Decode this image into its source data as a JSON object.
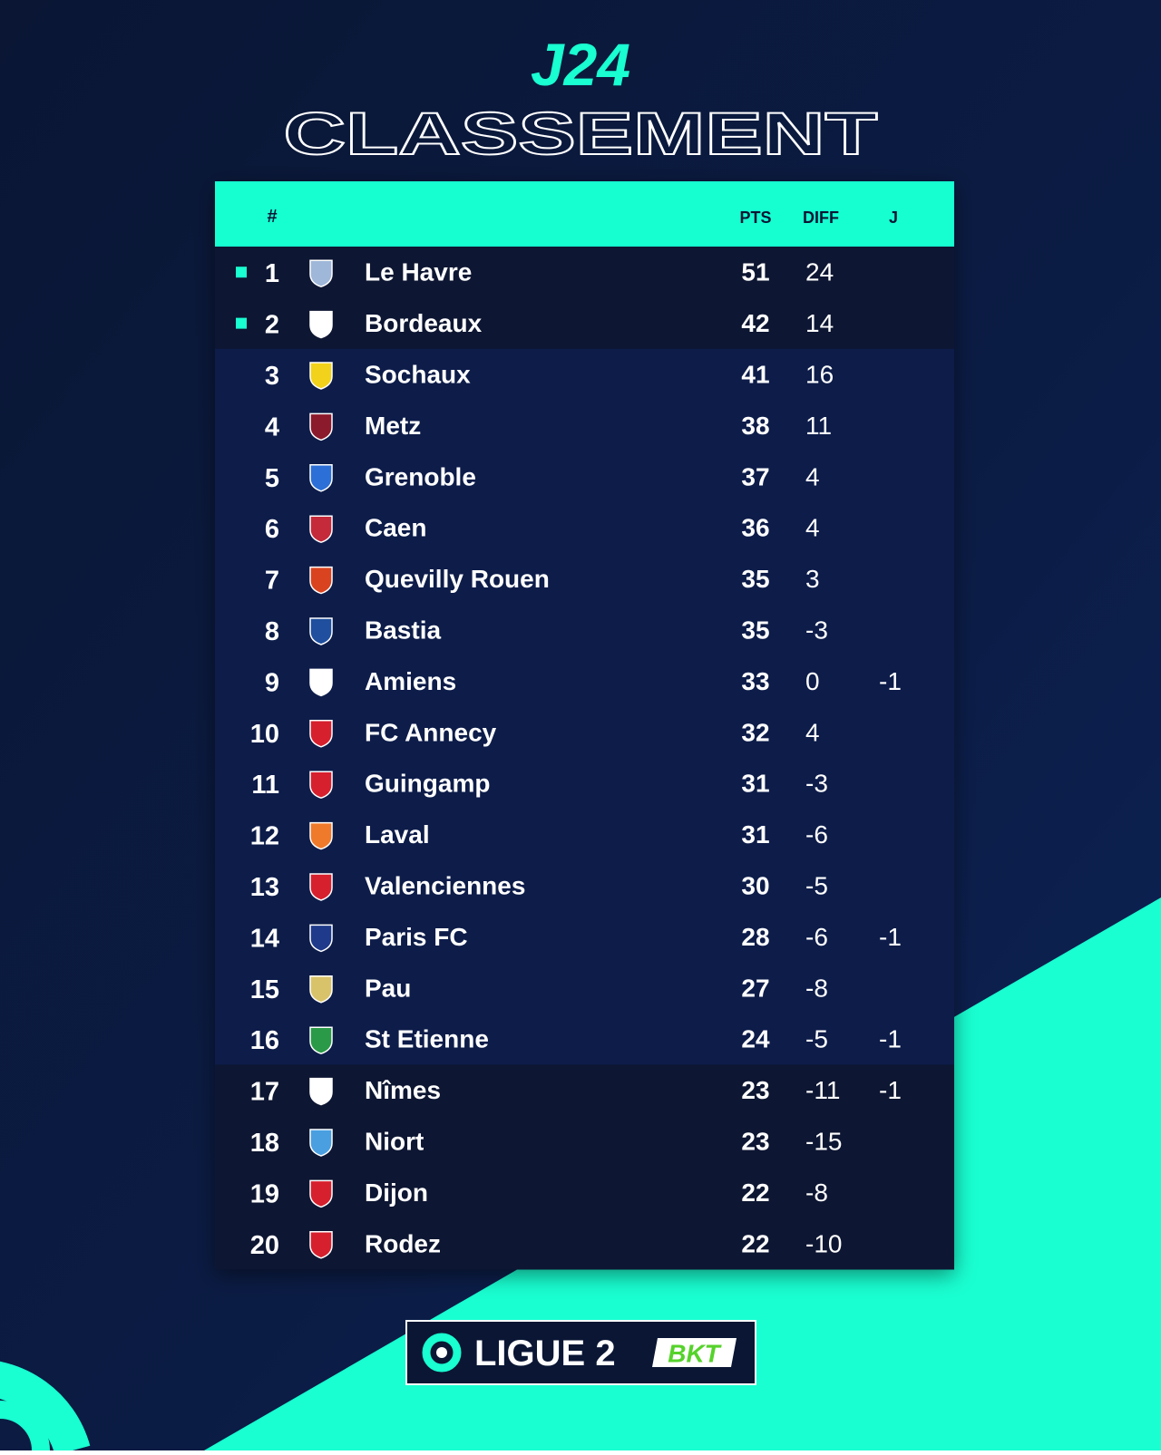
{
  "header": {
    "title": "J24",
    "subtitle": "CLASSEMENT"
  },
  "table": {
    "columns": {
      "rank": "#",
      "pts": "PTS",
      "diff": "DIFF",
      "j": "J"
    },
    "rows": [
      {
        "rank": 1,
        "team": "Le Havre",
        "pts": 51,
        "diff": 24
      },
      {
        "rank": 2,
        "team": "Bordeaux",
        "pts": 42,
        "diff": 14
      },
      {
        "rank": 3,
        "team": "Sochaux",
        "pts": 41,
        "diff": 16
      },
      {
        "rank": 4,
        "team": "Metz",
        "pts": 38,
        "diff": 11
      },
      {
        "rank": 5,
        "team": "Grenoble",
        "pts": 37,
        "diff": 4
      },
      {
        "rank": 6,
        "team": "Caen",
        "pts": 36,
        "diff": 4
      },
      {
        "rank": 7,
        "team": "Quevilly Rouen",
        "pts": 35,
        "diff": 3
      },
      {
        "rank": 8,
        "team": "Bastia",
        "pts": 35,
        "diff": -3
      },
      {
        "rank": 9,
        "team": "Amiens",
        "pts": 33,
        "diff": 0,
        "j": -1
      },
      {
        "rank": 10,
        "team": "FC Annecy",
        "pts": 32,
        "diff": 4
      },
      {
        "rank": 11,
        "team": "Guingamp",
        "pts": 31,
        "diff": -3
      },
      {
        "rank": 12,
        "team": "Laval",
        "pts": 31,
        "diff": -6
      },
      {
        "rank": 13,
        "team": "Valenciennes",
        "pts": 30,
        "diff": -5
      },
      {
        "rank": 14,
        "team": "Paris FC",
        "pts": 28,
        "diff": -6,
        "j": -1
      },
      {
        "rank": 15,
        "team": "Pau",
        "pts": 27,
        "diff": -8
      },
      {
        "rank": 16,
        "team": "St Etienne",
        "pts": 24,
        "diff": -5,
        "j": -1
      },
      {
        "rank": 17,
        "team": "Nîmes",
        "pts": 23,
        "diff": -11,
        "j": -1
      },
      {
        "rank": 18,
        "team": "Niort",
        "pts": 23,
        "diff": -15
      },
      {
        "rank": 19,
        "team": "Dijon",
        "pts": 22,
        "diff": -8
      },
      {
        "rank": 20,
        "team": "Rodez",
        "pts": 22,
        "diff": -10
      }
    ]
  },
  "footer": {
    "league": "LIGUE 2",
    "sponsor": "BKT"
  }
}
